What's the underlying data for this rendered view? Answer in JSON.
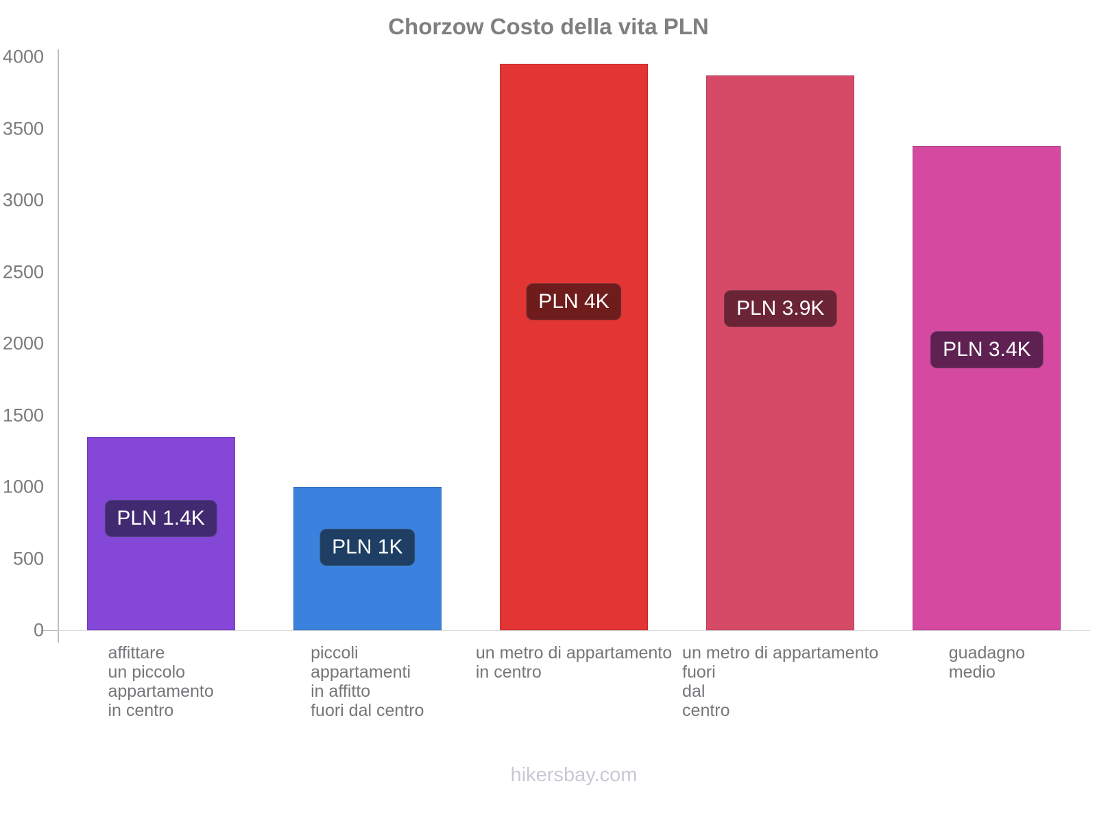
{
  "chart_data": {
    "type": "bar",
    "title": "Chorzow Costo della vita PLN",
    "xlabel": "",
    "ylabel": "",
    "currency": "PLN",
    "grid": false,
    "legend_position": "none",
    "y_axis": {
      "min": 0,
      "max": 4000,
      "step": 500,
      "ticks": [
        4000,
        3500,
        3000,
        2500,
        2000,
        1500,
        1000,
        500,
        0
      ]
    },
    "categories": [
      "affittare un piccolo appartamento in centro",
      "piccoli appartamenti in affitto fuori dal centro",
      "un metro di appartamento in centro",
      "un metro di appartamento fuori dal centro",
      "guadagno medio"
    ],
    "values": [
      1350,
      1000,
      3950,
      3870,
      3380
    ],
    "bars": [
      {
        "category": "affittare un piccolo appartamento in centro",
        "category_lines": [
          "affittare",
          "un piccolo",
          "appartamento",
          "in centro"
        ],
        "value": 1350,
        "label": "PLN 1.4K",
        "color": "#8447d8",
        "label_bg": "#412a70"
      },
      {
        "category": "piccoli appartamenti in affitto fuori dal centro",
        "category_lines": [
          "piccoli",
          "appartamenti",
          "in affitto",
          "fuori dal centro"
        ],
        "value": 1000,
        "label": "PLN 1K",
        "color": "#3a82dd",
        "label_bg": "#1e3e63"
      },
      {
        "category": "un metro di appartamento in centro",
        "category_lines": [
          "un metro di appartamento",
          "in centro"
        ],
        "value": 3950,
        "label": "PLN 4K",
        "color": "#e23534",
        "label_bg": "#6f1c1c"
      },
      {
        "category": "un metro di appartamento fuori dal centro",
        "category_lines": [
          "un metro di appartamento",
          "fuori",
          "dal",
          "centro"
        ],
        "value": 3870,
        "label": "PLN 3.9K",
        "color": "#d64a68",
        "label_bg": "#6b2336"
      },
      {
        "category": "guadagno medio",
        "category_lines": [
          "guadagno",
          "medio"
        ],
        "value": 3380,
        "label": "PLN 3.4K",
        "color": "#d54aa0",
        "label_bg": "#5e2152"
      }
    ]
  },
  "footer": {
    "text": "hikersbay.com"
  }
}
